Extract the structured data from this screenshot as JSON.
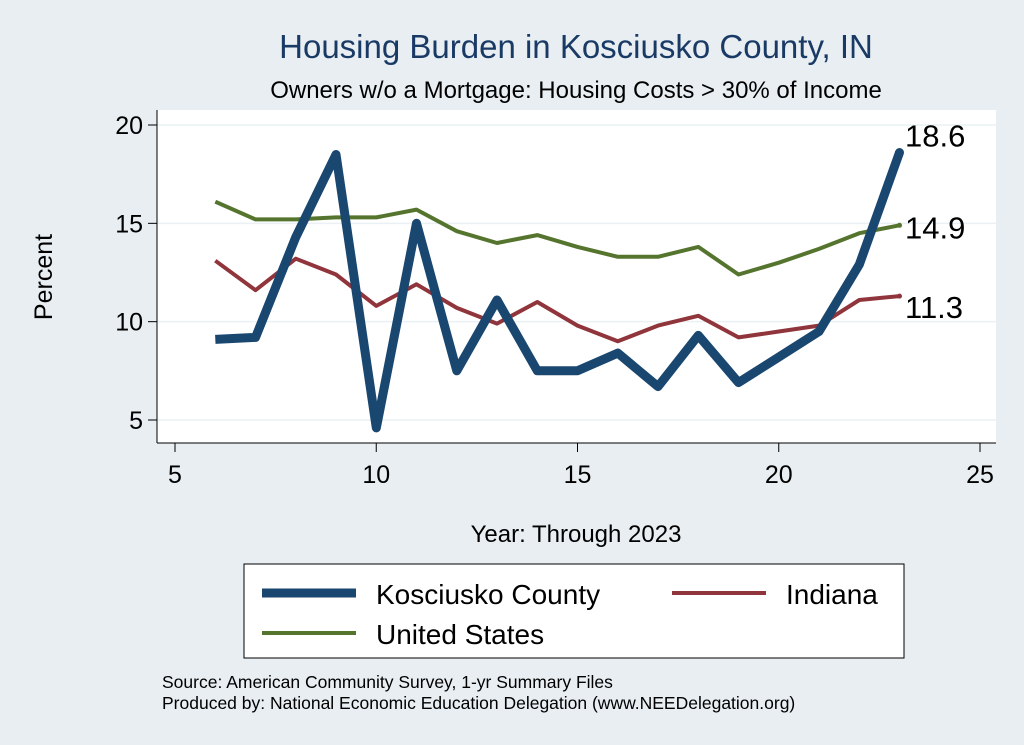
{
  "chart_data": {
    "type": "line",
    "title": "Housing Burden in Kosciusko County, IN",
    "subtitle": "Owners w/o a Mortgage: Housing Costs > 30% of Income",
    "xlabel": "Year: Through 2023",
    "ylabel": "Percent",
    "xlim": [
      5,
      25
    ],
    "ylim": [
      5,
      20
    ],
    "xticks": [
      "5",
      "10",
      "15",
      "20",
      "25"
    ],
    "yticks": [
      "5",
      "10",
      "15",
      "20"
    ],
    "grid": true,
    "legend_position": "bottom",
    "x": [
      6,
      7,
      8,
      9,
      10,
      11,
      12,
      13,
      14,
      15,
      16,
      17,
      18,
      19,
      20,
      21,
      22,
      23
    ],
    "series": [
      {
        "name": "Kosciusko County",
        "color": "#1a476f",
        "values": [
          9.1,
          9.2,
          14.3,
          18.5,
          4.6,
          15.0,
          7.5,
          11.1,
          7.5,
          7.5,
          8.4,
          6.7,
          9.3,
          6.9,
          8.2,
          9.5,
          12.9,
          18.6
        ],
        "end_label": "18.6"
      },
      {
        "name": "Indiana",
        "color": "#90353b",
        "values": [
          13.1,
          11.6,
          13.2,
          12.4,
          10.8,
          11.9,
          10.7,
          9.9,
          11.0,
          9.8,
          9.0,
          9.8,
          10.3,
          9.2,
          9.5,
          9.8,
          11.1,
          11.3
        ],
        "end_label": "11.3"
      },
      {
        "name": "United States",
        "color": "#55752f",
        "values": [
          16.1,
          15.2,
          15.2,
          15.3,
          15.3,
          15.7,
          14.6,
          14.0,
          14.4,
          13.8,
          13.3,
          13.3,
          13.8,
          12.4,
          13.0,
          13.7,
          14.5,
          14.9
        ],
        "end_label": "14.9"
      }
    ]
  },
  "notes": {
    "source": "Source: American Community Survey, 1-yr Summary Files",
    "produced_by": "Produced by: National Economic Education Delegation (www.NEEDelegation.org)"
  }
}
